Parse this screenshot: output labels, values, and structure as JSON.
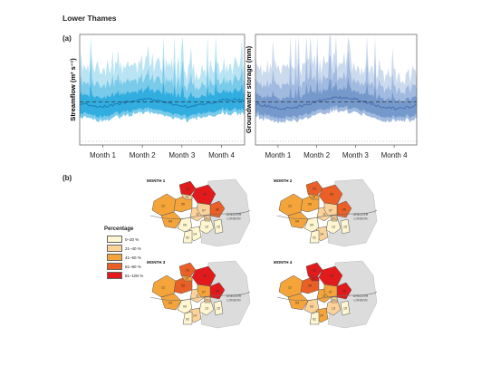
{
  "figure": {
    "title": "Lower Thames",
    "panel_a": "(a)",
    "panel_b": "(b)"
  },
  "chart_data": [
    {
      "type": "area",
      "id": "streamflow",
      "ylabel": "Streamflow (m³ s⁻¹)",
      "x_ticks": [
        "Month 1",
        "Month 2",
        "Month 3",
        "Month 4"
      ],
      "colors": {
        "light": "#b3e1f2",
        "mid": "#6ec6e8",
        "dark": "#26a8de",
        "median": "#1a7fb8"
      },
      "bands_note": "ensemble spread shown as nested shaded bands; median line, dashed reference lines"
    },
    {
      "type": "area",
      "id": "groundwater",
      "ylabel": "Groundwater storage (mm)",
      "x_ticks": [
        "Month 1",
        "Month 2",
        "Month 3",
        "Month 4"
      ],
      "colors": {
        "light": "#c7d6ec",
        "mid": "#99b4dc",
        "dark": "#6f93c9",
        "median": "#4a72b0"
      }
    }
  ],
  "maps": [
    {
      "label": "MONTH 1",
      "city": "GREATER LONDON"
    },
    {
      "label": "MONTH 2",
      "city": "GREATER LONDON"
    },
    {
      "label": "MONTH 3",
      "city": "GREATER LONDON"
    },
    {
      "label": "MONTH 4",
      "city": "GREATER LONDON"
    }
  ],
  "legend": {
    "title": "Percentage",
    "items": [
      {
        "label": "0–20 %",
        "color": "#fef6d0"
      },
      {
        "label": "21–40 %",
        "color": "#fbd39a"
      },
      {
        "label": "41–60 %",
        "color": "#f5a43a"
      },
      {
        "label": "61–80 %",
        "color": "#ea5f26"
      },
      {
        "label": "81–100 %",
        "color": "#e31a1c"
      }
    ]
  },
  "map_fills": [
    [
      "#e31a1c",
      "#f5a43a",
      "#e31a1c",
      "#f5a43a",
      "#fbd39a",
      "#ea5f26",
      "#fbd39a",
      "#f5a43a",
      "#fef6d0",
      "#fbd39a",
      "#fef6d0",
      "#fef6d0",
      "#fbd39a",
      "#fef6d0",
      "#fef6d0"
    ],
    [
      "#ea5f26",
      "#f5a43a",
      "#ea5f26",
      "#f5a43a",
      "#f5a43a",
      "#ea5f26",
      "#fbd39a",
      "#f5a43a",
      "#fef6d0",
      "#fbd39a",
      "#fef6d0",
      "#fbd39a",
      "#fbd39a",
      "#fef6d0",
      "#fef6d0"
    ],
    [
      "#ea5f26",
      "#f5a43a",
      "#e31a1c",
      "#ea5f26",
      "#f5a43a",
      "#e31a1c",
      "#fbd39a",
      "#f5a43a",
      "#fef6d0",
      "#f5a43a",
      "#fef6d0",
      "#fbd39a",
      "#fbd39a",
      "#fef6d0",
      "#fef6d0"
    ],
    [
      "#e31a1c",
      "#f5a43a",
      "#e31a1c",
      "#ea5f26",
      "#e31a1c",
      "#e31a1c",
      "#f5a43a",
      "#f5a43a",
      "#fbd39a",
      "#f5a43a",
      "#fbd39a",
      "#f5a43a",
      "#fbd39a",
      "#fef6d0",
      "#fef6d0"
    ]
  ]
}
